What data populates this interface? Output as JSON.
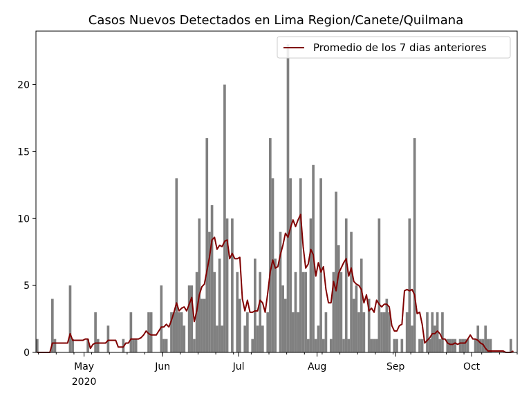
{
  "chart_data": {
    "type": "bar",
    "title": "Casos Nuevos Detectados en Lima Region/Canete/Quilmana",
    "xlabel": "",
    "ylabel": "",
    "start_date": "2020-04-12",
    "end_date": "2020-10-19",
    "ylim": [
      0,
      24
    ],
    "yticks": [
      0,
      5,
      10,
      15,
      20
    ],
    "xticks": [
      {
        "date": "2020-05-01",
        "label": "May",
        "sublabel": "2020"
      },
      {
        "date": "2020-06-01",
        "label": "Jun",
        "sublabel": ""
      },
      {
        "date": "2020-07-01",
        "label": "Jul",
        "sublabel": ""
      },
      {
        "date": "2020-08-01",
        "label": "Aug",
        "sublabel": ""
      },
      {
        "date": "2020-09-01",
        "label": "Sep",
        "sublabel": ""
      },
      {
        "date": "2020-10-01",
        "label": "Oct",
        "sublabel": ""
      }
    ],
    "bar_color": "#808080",
    "line_color": "#800000",
    "legend": {
      "placement": "top-right",
      "entries": [
        "Promedio de los 7 dias anteriores"
      ]
    },
    "series": [
      {
        "name": "Casos Nuevos",
        "values": [
          1,
          0,
          0,
          0,
          0,
          0,
          4,
          1,
          0,
          0,
          0,
          0,
          0,
          5,
          1,
          0,
          0,
          0,
          0,
          0,
          1,
          0,
          0,
          3,
          1,
          0,
          0,
          0,
          2,
          0,
          0,
          0,
          0,
          0,
          1,
          0,
          0,
          3,
          1,
          1,
          0,
          0,
          0,
          0,
          3,
          3,
          0,
          0,
          0,
          5,
          1,
          1,
          0,
          3,
          3,
          13,
          3,
          3,
          2,
          0,
          5,
          5,
          1,
          6,
          10,
          4,
          4,
          16,
          9,
          11,
          6,
          2,
          7,
          2,
          20,
          10,
          0,
          10,
          0,
          6,
          4,
          0,
          2,
          3,
          0,
          1,
          7,
          2,
          6,
          2,
          0,
          3,
          16,
          13,
          7,
          0,
          9,
          5,
          4,
          23,
          13,
          3,
          6,
          3,
          13,
          6,
          6,
          1,
          10,
          14,
          1,
          2,
          13,
          1,
          3,
          0,
          1,
          6,
          12,
          8,
          6,
          1,
          10,
          1,
          9,
          4,
          5,
          3,
          7,
          3,
          0,
          4,
          1,
          1,
          1,
          10,
          3,
          3,
          4,
          3,
          0,
          1,
          1,
          0,
          1,
          0,
          3,
          10,
          2,
          16,
          0,
          1,
          1,
          0,
          3,
          1,
          3,
          2,
          3,
          1,
          3,
          0,
          1,
          1,
          1,
          1,
          0,
          1,
          1,
          1,
          1,
          0,
          0,
          1,
          2,
          1,
          1,
          2,
          1,
          1,
          0,
          0,
          0,
          0,
          0,
          0,
          0,
          1,
          0,
          0,
          0,
          0,
          0,
          0,
          0,
          0,
          0,
          0,
          0,
          1
        ]
      },
      {
        "name": "Promedio de los 7 dias anteriores",
        "values": [
          0.0,
          0.0,
          0.0,
          0.0,
          0.0,
          0.0,
          0.7,
          0.7,
          0.7,
          0.7,
          0.7,
          0.7,
          0.7,
          1.4,
          0.9,
          0.9,
          0.9,
          0.9,
          0.9,
          1.0,
          1.0,
          0.3,
          0.6,
          0.7,
          0.7,
          0.7,
          0.7,
          0.7,
          0.9,
          0.9,
          0.9,
          0.9,
          0.4,
          0.4,
          0.4,
          0.7,
          0.7,
          1.0,
          1.0,
          1.0,
          1.0,
          1.1,
          1.3,
          1.6,
          1.4,
          1.3,
          1.3,
          1.3,
          1.6,
          1.9,
          1.9,
          2.1,
          1.9,
          2.4,
          3.0,
          3.7,
          3.1,
          3.3,
          3.4,
          3.1,
          3.6,
          4.1,
          2.3,
          3.1,
          4.3,
          4.9,
          5.1,
          6.1,
          7.1,
          8.4,
          8.6,
          7.7,
          8.0,
          7.9,
          8.3,
          8.4,
          7.0,
          7.4,
          7.0,
          7.0,
          7.1,
          4.0,
          3.1,
          3.9,
          3.0,
          3.0,
          3.1,
          3.1,
          3.9,
          3.7,
          3.0,
          4.4,
          6.0,
          6.9,
          6.3,
          6.4,
          7.3,
          8.0,
          8.9,
          8.6,
          9.3,
          9.9,
          9.4,
          9.9,
          10.3,
          7.9,
          6.3,
          6.6,
          7.7,
          7.3,
          5.7,
          6.7,
          6.0,
          6.4,
          4.7,
          3.7,
          3.7,
          5.3,
          4.6,
          5.9,
          6.3,
          6.7,
          7.0,
          5.7,
          6.3,
          5.3,
          5.1,
          5.0,
          4.7,
          3.7,
          4.3,
          3.1,
          3.3,
          3.0,
          3.9,
          3.6,
          3.4,
          3.6,
          3.6,
          3.4,
          2.0,
          1.6,
          1.6,
          2.0,
          2.1,
          4.6,
          4.7,
          4.6,
          4.7,
          4.3,
          2.9,
          3.0,
          2.1,
          0.7,
          0.9,
          1.1,
          1.4,
          1.4,
          1.6,
          1.4,
          1.0,
          1.0,
          0.7,
          0.6,
          0.6,
          0.7,
          0.6,
          0.7,
          0.7,
          0.7,
          1.0,
          1.3,
          1.0,
          1.0,
          0.9,
          0.7,
          0.6,
          0.3,
          0.1,
          0.1,
          0.1,
          0.1,
          0.1,
          0.1,
          0.1,
          0.0,
          0.0,
          0.0,
          0.1
        ]
      }
    ],
    "grid": false
  }
}
